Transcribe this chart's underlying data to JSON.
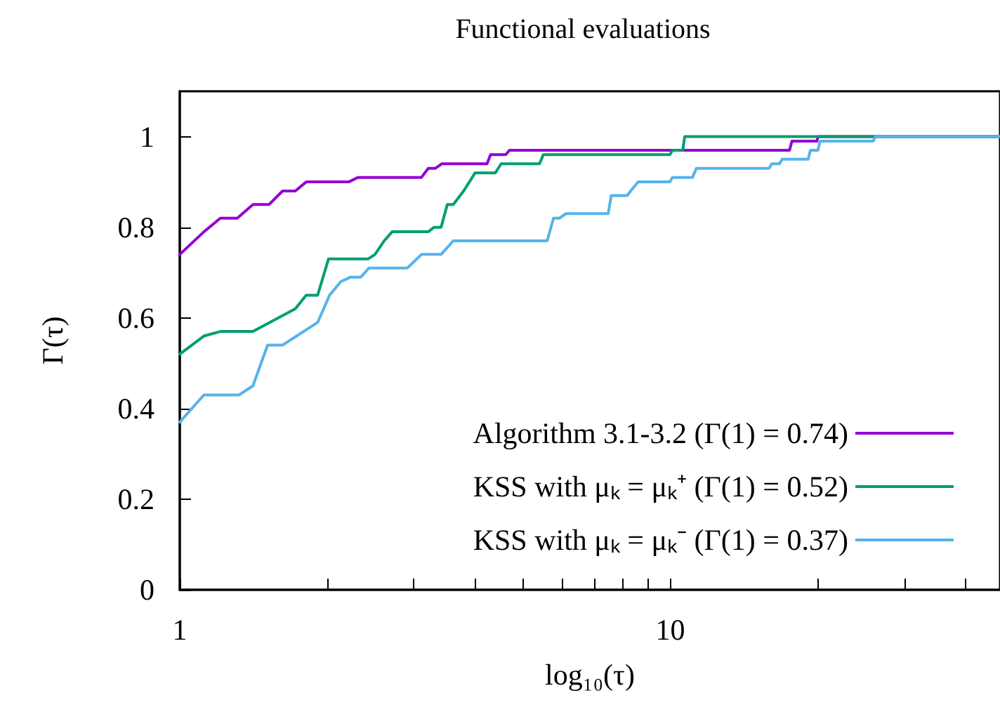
{
  "chart_data": {
    "type": "line",
    "title": "Functional evaluations",
    "xlabel": "log₁₀(τ)",
    "ylabel": "Γ(τ)",
    "log": "x",
    "xlim": [
      1,
      47
    ],
    "xticks": [
      {
        "value": 1,
        "label": "1"
      },
      {
        "value": 2,
        "label": null
      },
      {
        "value": 3,
        "label": null
      },
      {
        "value": 4,
        "label": null
      },
      {
        "value": 5,
        "label": null
      },
      {
        "value": 6,
        "label": null
      },
      {
        "value": 7,
        "label": null
      },
      {
        "value": 8,
        "label": null
      },
      {
        "value": 9,
        "label": null
      },
      {
        "value": 10,
        "label": "10"
      },
      {
        "value": 20,
        "label": null
      },
      {
        "value": 30,
        "label": null
      },
      {
        "value": 40,
        "label": null
      }
    ],
    "ylim": [
      0,
      1.1
    ],
    "yticks": [
      {
        "value": 0,
        "label": "0"
      },
      {
        "value": 0.2,
        "label": "0.2"
      },
      {
        "value": 0.4,
        "label": "0.4"
      },
      {
        "value": 0.6,
        "label": "0.6"
      },
      {
        "value": 0.8,
        "label": "0.8"
      },
      {
        "value": 1,
        "label": "1"
      }
    ],
    "legend": "bottom right",
    "grid": false,
    "marker": "none",
    "line_style": "solid",
    "series": [
      {
        "name": "Algorithm 3.1-3.2 (Γ(1) = 0.74)",
        "color": "#9400d3",
        "x": [
          1,
          1.12,
          1.21,
          1.31,
          1.41,
          1.52,
          1.62,
          1.72,
          1.81,
          2.21,
          2.31,
          3.11,
          3.21,
          3.32,
          3.42,
          4.23,
          4.3,
          4.62,
          4.7,
          17.5,
          17.7,
          19.9,
          20,
          47
        ],
        "values": [
          0.74,
          0.79,
          0.82,
          0.82,
          0.85,
          0.85,
          0.88,
          0.88,
          0.9,
          0.9,
          0.91,
          0.91,
          0.93,
          0.93,
          0.94,
          0.94,
          0.96,
          0.96,
          0.97,
          0.97,
          0.99,
          0.99,
          1,
          1
        ]
      },
      {
        "name": "KSS with μₖ = μₖ⁺ (Γ(1) = 0.52)",
        "color": "#009e73",
        "x": [
          1,
          1.12,
          1.21,
          1.41,
          1.72,
          1.81,
          1.91,
          2.01,
          2.42,
          2.5,
          2.61,
          2.71,
          3.21,
          3.3,
          3.41,
          3.51,
          3.61,
          3.79,
          4,
          4.4,
          4.52,
          5.41,
          5.51,
          9.98,
          10.1,
          10.6,
          10.7,
          47
        ],
        "values": [
          0.52,
          0.56,
          0.57,
          0.57,
          0.62,
          0.65,
          0.65,
          0.73,
          0.73,
          0.74,
          0.77,
          0.79,
          0.79,
          0.8,
          0.8,
          0.85,
          0.85,
          0.88,
          0.92,
          0.92,
          0.94,
          0.94,
          0.96,
          0.96,
          0.97,
          0.97,
          1,
          1
        ]
      },
      {
        "name": "KSS with μₖ = μₖ⁻ (Γ(1) = 0.37)",
        "color": "#56b4e9",
        "x": [
          1,
          1.12,
          1.32,
          1.41,
          1.51,
          1.62,
          1.91,
          2.02,
          2.13,
          2.23,
          2.34,
          2.43,
          2.91,
          3.11,
          3.41,
          3.61,
          5.61,
          5.78,
          5.94,
          6.13,
          7.47,
          7.58,
          8.17,
          8.3,
          8.6,
          9.98,
          10.1,
          11.1,
          11.3,
          15.9,
          16.1,
          16.7,
          16.9,
          19.1,
          19.3,
          20,
          20.2,
          25.9,
          26.2,
          47
        ],
        "values": [
          0.37,
          0.43,
          0.43,
          0.45,
          0.54,
          0.54,
          0.59,
          0.65,
          0.68,
          0.69,
          0.69,
          0.71,
          0.71,
          0.74,
          0.74,
          0.77,
          0.77,
          0.82,
          0.82,
          0.83,
          0.83,
          0.87,
          0.87,
          0.88,
          0.9,
          0.9,
          0.91,
          0.91,
          0.93,
          0.93,
          0.94,
          0.94,
          0.95,
          0.95,
          0.97,
          0.97,
          0.99,
          0.99,
          1,
          1
        ]
      }
    ]
  }
}
